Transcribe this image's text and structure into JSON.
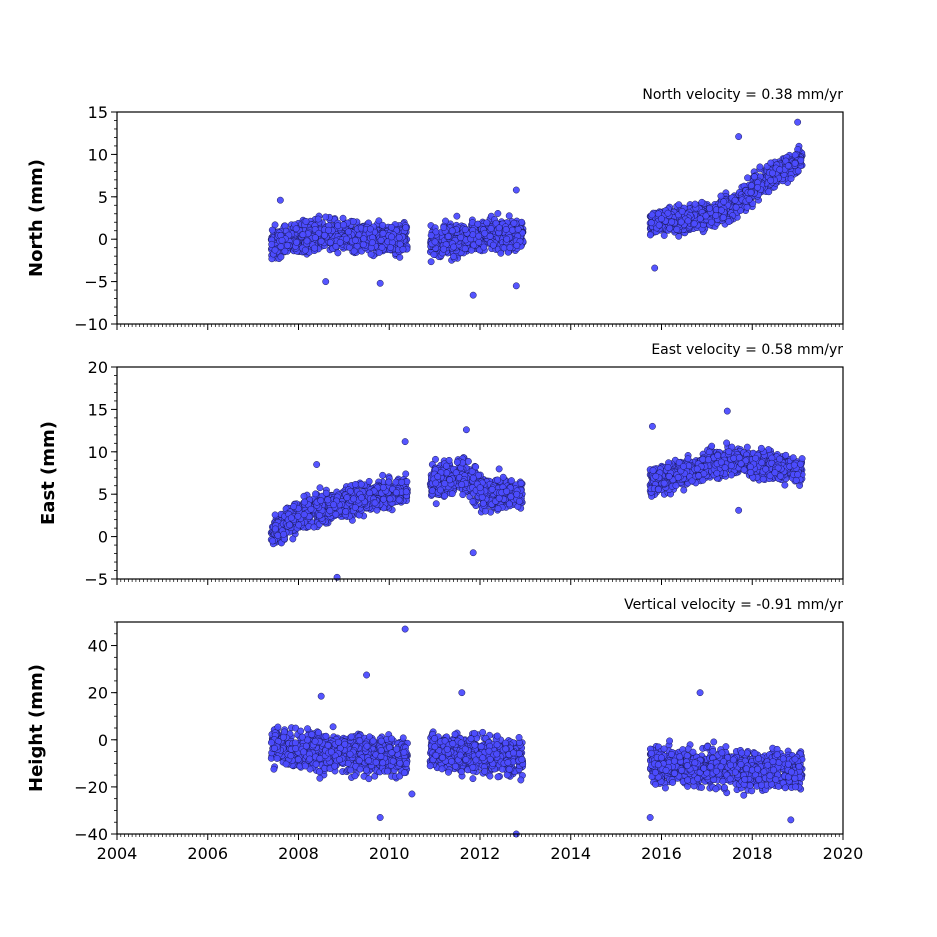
{
  "chart_data": [
    {
      "type": "scatter",
      "title": "North velocity = 0.38 mm/yr",
      "ylabel": "North (mm)",
      "xlim": [
        2004,
        2020
      ],
      "ylim": [
        -10,
        15
      ],
      "yticks": [
        -10,
        -5,
        0,
        5,
        10,
        15
      ],
      "color": "#4c4cff",
      "segments": [
        {
          "x": [
            2007.4,
            2008.5,
            2010.4
          ],
          "y": [
            -0.5,
            0.5,
            0.0
          ],
          "spread": 1.4
        },
        {
          "x": [
            2010.9,
            2012.0,
            2012.95
          ],
          "y": [
            -0.5,
            0.5,
            0.5
          ],
          "spread": 1.5
        },
        {
          "x": [
            2015.75,
            2016.5,
            2017.5,
            2018.3,
            2019.1
          ],
          "y": [
            2.0,
            2.3,
            3.5,
            7.0,
            9.5
          ],
          "spread": 1.2
        }
      ],
      "outliers": [
        [
          2011.85,
          -6.6
        ],
        [
          2012.8,
          5.8
        ],
        [
          2017.7,
          12.1
        ],
        [
          2019.0,
          13.8
        ],
        [
          2015.85,
          -3.4
        ],
        [
          2012.8,
          -5.5
        ],
        [
          2009.8,
          -5.2
        ],
        [
          2008.6,
          -5.0
        ],
        [
          2007.6,
          4.6
        ]
      ]
    },
    {
      "type": "scatter",
      "title": "East velocity = 0.58 mm/yr",
      "ylabel": "East (mm)",
      "xlim": [
        2004,
        2020
      ],
      "ylim": [
        -5,
        20
      ],
      "yticks": [
        -5,
        0,
        5,
        10,
        15,
        20
      ],
      "color": "#4c4cff",
      "segments": [
        {
          "x": [
            2007.4,
            2008.0,
            2009.0,
            2010.4
          ],
          "y": [
            0.5,
            2.5,
            4.0,
            5.5
          ],
          "spread": 1.4
        },
        {
          "x": [
            2010.9,
            2011.6,
            2012.1,
            2012.95
          ],
          "y": [
            6.0,
            7.5,
            5.0,
            5.0
          ],
          "spread": 1.6
        },
        {
          "x": [
            2015.75,
            2016.5,
            2017.5,
            2018.3,
            2019.1
          ],
          "y": [
            6.5,
            7.5,
            9.0,
            8.5,
            7.5
          ],
          "spread": 1.3
        }
      ],
      "outliers": [
        [
          2008.85,
          -4.8
        ],
        [
          2011.7,
          12.6
        ],
        [
          2017.45,
          14.8
        ],
        [
          2015.8,
          13.0
        ],
        [
          2017.7,
          3.1
        ],
        [
          2011.85,
          -1.9
        ],
        [
          2008.4,
          8.5
        ],
        [
          2010.35,
          11.2
        ]
      ]
    },
    {
      "type": "scatter",
      "title": "Vertical velocity = -0.91 mm/yr",
      "ylabel": "Height (mm)",
      "xlim": [
        2004,
        2020
      ],
      "ylim": [
        -40,
        50
      ],
      "yticks": [
        -40,
        -20,
        0,
        20,
        40
      ],
      "xticks": [
        2004,
        2006,
        2008,
        2010,
        2012,
        2014,
        2016,
        2018,
        2020
      ],
      "color": "#4c4cff",
      "segments": [
        {
          "x": [
            2007.4,
            2008.5,
            2010.4
          ],
          "y": [
            -3.0,
            -5.0,
            -7.0
          ],
          "spread": 6.5
        },
        {
          "x": [
            2010.9,
            2012.0,
            2012.95
          ],
          "y": [
            -5.0,
            -6.0,
            -8.0
          ],
          "spread": 6.5
        },
        {
          "x": [
            2015.75,
            2016.8,
            2018.0,
            2019.1
          ],
          "y": [
            -11.0,
            -11.0,
            -13.0,
            -13.0
          ],
          "spread": 6.5
        }
      ],
      "outliers": [
        [
          2010.35,
          47.0
        ],
        [
          2009.5,
          27.5
        ],
        [
          2011.6,
          20.0
        ],
        [
          2016.85,
          20.0
        ],
        [
          2012.8,
          -40.0
        ],
        [
          2009.8,
          -33.0
        ],
        [
          2015.75,
          -33.0
        ],
        [
          2018.85,
          -34.0
        ],
        [
          2010.5,
          -23.0
        ],
        [
          2008.5,
          18.5
        ]
      ]
    }
  ]
}
